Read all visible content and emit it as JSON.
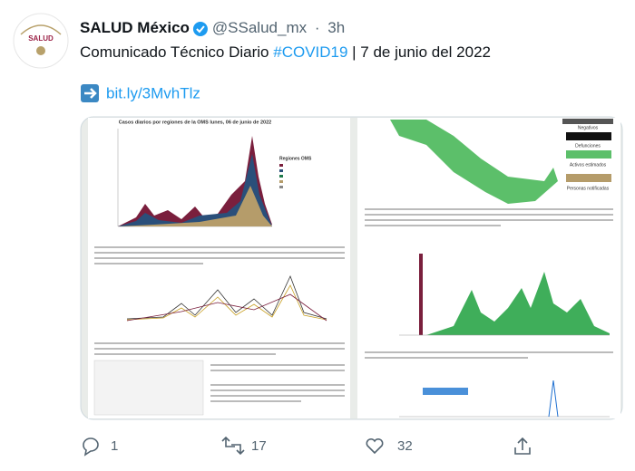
{
  "tweet": {
    "avatar_label": "SALUD",
    "name": "SALUD México",
    "handle": "@SSalud_mx",
    "separator": "·",
    "time": "3h",
    "text_before": "Comunicado Técnico Diario ",
    "hashtag": "#COVID19",
    "text_after": " | 7 de junio del 2022",
    "link": "bit.ly/3MvhTlz",
    "image": {
      "left_title": "Casos diarios por regiones de la OMS lunes, 06 de junio de 2022",
      "legend_title": "Regiones OMS",
      "stats": [
        "Negativos",
        "Defunciones",
        "Activos estimados",
        "Personas notificadas"
      ]
    },
    "replies": "1",
    "retweets": "17",
    "likes": "32"
  }
}
